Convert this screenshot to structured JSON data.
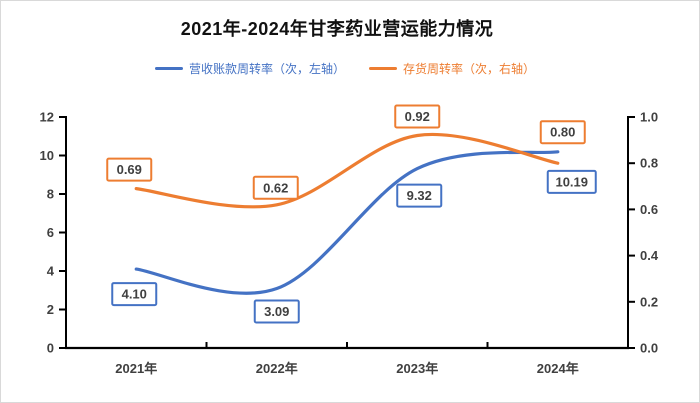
{
  "window": {
    "background": "#ffffff",
    "frame_border_color": "#d9d9d9"
  },
  "header": {
    "title": "2021年-2024年甘李药业营运能力情况"
  },
  "legend": {
    "items": [
      {
        "label": "营收账款周转率（次，左轴）",
        "color": "#4472C4"
      },
      {
        "label": "存货周转率（次，右轴）",
        "color": "#ED7D31"
      }
    ]
  },
  "chart_data": {
    "type": "line",
    "title": "2021年-2024年甘李药业营运能力情况",
    "smooth": true,
    "grid": false,
    "legend_position": "top",
    "categories": [
      "2021年",
      "2022年",
      "2023年",
      "2024年"
    ],
    "series": [
      {
        "name": "营收账款周转率（次，左轴）",
        "axis": "left",
        "color": "#4472C4",
        "values": [
          4.1,
          3.09,
          9.32,
          10.19
        ],
        "labels": [
          "4.10",
          "3.09",
          "9.32",
          "10.19"
        ],
        "label_side": "below"
      },
      {
        "name": "存货周转率（次，右轴）",
        "axis": "right",
        "color": "#ED7D31",
        "values": [
          0.69,
          0.62,
          0.92,
          0.8
        ],
        "labels": [
          "0.69",
          "0.62",
          "0.92",
          "0.80"
        ],
        "label_side": "above"
      }
    ],
    "left_axis": {
      "min": 0,
      "max": 12,
      "step": 2,
      "ticks": [
        "0",
        "2",
        "4",
        "6",
        "8",
        "10",
        "12"
      ]
    },
    "right_axis": {
      "min": 0,
      "max": 1.0,
      "step": 0.2,
      "ticks": [
        "0.0",
        "0.2",
        "0.4",
        "0.6",
        "0.8",
        "1.0"
      ]
    },
    "axis_color": "#000000",
    "tick_label_color": "#404040",
    "data_label_text_color": "#404040",
    "data_label_fill": "#ffffff"
  }
}
